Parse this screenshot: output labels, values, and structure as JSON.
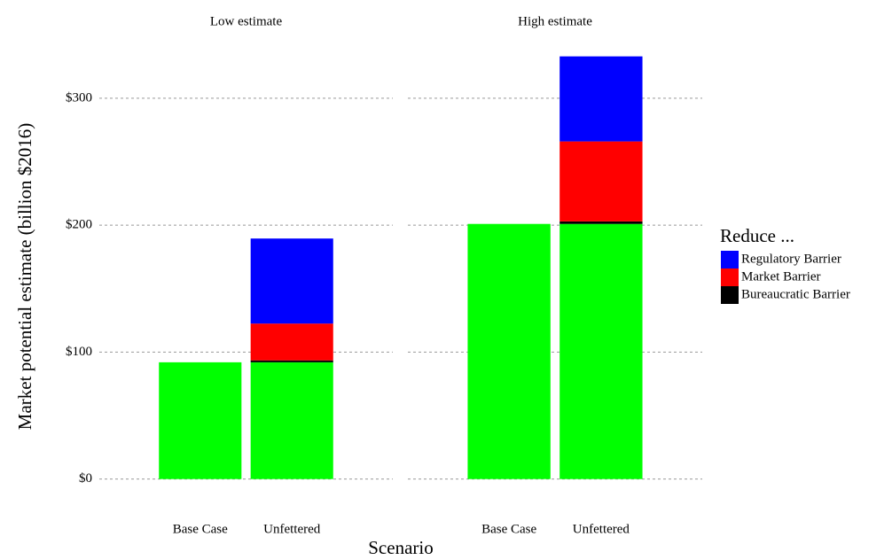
{
  "chart_data": {
    "type": "bar",
    "stacked": true,
    "ylabel": "Market potential estimate (billion $2016)",
    "xlabel": "Scenario",
    "legend_title": "Reduce ...",
    "legend": "right",
    "grid": true,
    "ylim": [
      -10,
      346
    ],
    "yticks": [
      {
        "value": 0,
        "label": "$0"
      },
      {
        "value": 100,
        "label": "$100"
      },
      {
        "value": 200,
        "label": "$200"
      },
      {
        "value": 300,
        "label": "$300"
      }
    ],
    "legend_order": [
      3,
      2,
      1
    ],
    "panels": [
      {
        "title": "Low estimate",
        "categories": [
          "Base Case",
          "Unfettered"
        ],
        "series": [
          {
            "color": "#00ff00",
            "values": [
              92,
              92
            ]
          },
          {
            "name": "Bureaucratic Barrier",
            "color": "#000000",
            "values": [
              null,
              1.5
            ]
          },
          {
            "name": "Market Barrier",
            "color": "#ff0000",
            "values": [
              null,
              29
            ]
          },
          {
            "name": "Regulatory Barrier",
            "color": "#0000ff",
            "values": [
              null,
              67
            ]
          }
        ]
      },
      {
        "title": "High estimate",
        "categories": [
          "Base Case",
          "Unfettered"
        ],
        "series": [
          {
            "color": "#00ff00",
            "values": [
              201,
              201
            ]
          },
          {
            "name": "Bureaucratic Barrier",
            "color": "#000000",
            "values": [
              null,
              2
            ]
          },
          {
            "name": "Market Barrier",
            "color": "#ff0000",
            "values": [
              null,
              63
            ]
          },
          {
            "name": "Regulatory Barrier",
            "color": "#0000ff",
            "values": [
              null,
              67
            ]
          }
        ]
      }
    ]
  }
}
